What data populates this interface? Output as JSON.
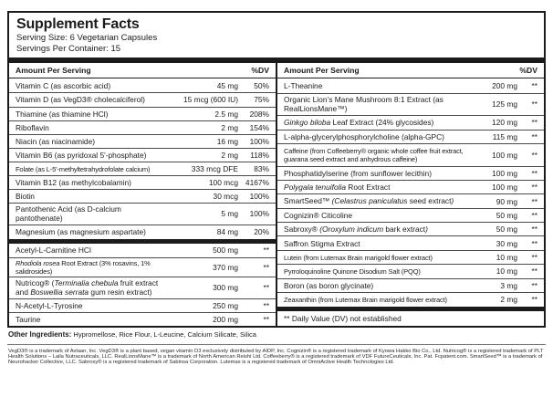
{
  "colors": {
    "text": "#1b1b1b",
    "background": "#ffffff"
  },
  "header": {
    "title": "Supplement Facts",
    "serving_size": "Serving Size: 6 Vegetarian Capsules",
    "servings_per_container": "Servings Per Container: 15"
  },
  "columns": {
    "left": {
      "header": {
        "amount": "Amount Per Serving",
        "dv": "%DV"
      },
      "sections": [
        {
          "rows": [
            {
              "name_parts": [
                {
                  "t": "Vitamin C (as ascorbic acid)"
                }
              ],
              "amount": "45 mg",
              "dv": "50%"
            },
            {
              "name_parts": [
                {
                  "t": "Vitamin D (as VegD3® cholecalciferol)"
                }
              ],
              "amount": "15 mcg (600 IU)",
              "dv": "75%"
            },
            {
              "name_parts": [
                {
                  "t": "Thiamine (as thiamine HCl)"
                }
              ],
              "amount": "2.5 mg",
              "dv": "208%"
            },
            {
              "name_parts": [
                {
                  "t": "Riboflavin"
                }
              ],
              "amount": "2 mg",
              "dv": "154%"
            },
            {
              "name_parts": [
                {
                  "t": "Niacin (as niacinamide)"
                }
              ],
              "amount": "16 mg",
              "dv": "100%"
            },
            {
              "name_parts": [
                {
                  "t": "Vitamin B6 (as pyridoxal 5'-phosphate)"
                }
              ],
              "amount": "2 mg",
              "dv": "118%"
            },
            {
              "name_parts": [
                {
                  "t": "Folate (as L-5'-methyltetrahydrofolate calcium)"
                }
              ],
              "amount": "333 mcg DFE",
              "dv": "83%",
              "small": true
            },
            {
              "name_parts": [
                {
                  "t": "Vitamin B12 (as methylcobalamin)"
                }
              ],
              "amount": "100 mcg",
              "dv": "4167%"
            },
            {
              "name_parts": [
                {
                  "t": "Biotin"
                }
              ],
              "amount": "30 mcg",
              "dv": "100%"
            },
            {
              "name_parts": [
                {
                  "t": "Pantothenic Acid (as D-calcium pantothenate)"
                }
              ],
              "amount": "5 mg",
              "dv": "100%"
            },
            {
              "name_parts": [
                {
                  "t": "Magnesium (as magnesium aspartate)"
                }
              ],
              "amount": "84 mg",
              "dv": "20%"
            }
          ]
        },
        {
          "rows": [
            {
              "name_parts": [
                {
                  "t": "Acetyl-L-Carnitine HCl"
                }
              ],
              "amount": "500 mg",
              "dv": "**"
            },
            {
              "name_parts": [
                {
                  "t": "Rhodiola rosea",
                  "i": true
                },
                {
                  "t": " Root Extract (3% rosavins, 1% salidrosides)"
                }
              ],
              "amount": "370 mg",
              "dv": "**",
              "small": true
            },
            {
              "name_parts": [
                {
                  "t": "Nutricog® ("
                },
                {
                  "t": "Terminalia chebula",
                  "i": true
                },
                {
                  "t": " fruit extract and "
                },
                {
                  "t": "Boswellia serrata",
                  "i": true
                },
                {
                  "t": " gum resin extract)"
                }
              ],
              "amount": "300 mg",
              "dv": "**",
              "double": true
            },
            {
              "name_parts": [
                {
                  "t": "N-Acetyl-L-Tyrosine"
                }
              ],
              "amount": "250 mg",
              "dv": "**"
            },
            {
              "name_parts": [
                {
                  "t": "Taurine"
                }
              ],
              "amount": "200 mg",
              "dv": "**"
            }
          ]
        }
      ]
    },
    "right": {
      "header": {
        "amount": "Amount Per Serving",
        "dv": "%DV"
      },
      "sections": [
        {
          "rows": [
            {
              "name_parts": [
                {
                  "t": "L-Theanine"
                }
              ],
              "amount": "200 mg",
              "dv": "**"
            },
            {
              "name_parts": [
                {
                  "t": "Organic Lion’s Mane Mushroom 8:1 Extract (as RealLionsMane™)"
                }
              ],
              "amount": "125 mg",
              "dv": "**",
              "double": true
            },
            {
              "name_parts": [
                {
                  "t": "Ginkgo biloba",
                  "i": true
                },
                {
                  "t": " Leaf Extract (24% glycosides)"
                }
              ],
              "amount": "120 mg",
              "dv": "**"
            },
            {
              "name_parts": [
                {
                  "t": "L-alpha-glycerylphosphorylcholine (alpha-GPC)"
                }
              ],
              "amount": "115 mg",
              "dv": "**"
            },
            {
              "name_parts": [
                {
                  "t": "Caffeine (from Coffeeberry® organic whole coffee fruit extract, guarana seed extract and anhydrous caffeine)"
                }
              ],
              "amount": "100 mg",
              "dv": "**",
              "double": true,
              "small": true
            },
            {
              "name_parts": [
                {
                  "t": "Phosphatidylserine (from sunflower lecithin)"
                }
              ],
              "amount": "100 mg",
              "dv": "**"
            },
            {
              "name_parts": [
                {
                  "t": "Polygala tenuifolia",
                  "i": true
                },
                {
                  "t": " Root Extract"
                }
              ],
              "amount": "100 mg",
              "dv": "**"
            },
            {
              "name_parts": [
                {
                  "t": "SmartSeed™ "
                },
                {
                  "t": "(Celastrus paniculatus",
                  "i": true
                },
                {
                  "t": " seed extract"
                },
                {
                  "t": ")",
                  "i": true
                }
              ],
              "amount": "90 mg",
              "dv": "**"
            },
            {
              "name_parts": [
                {
                  "t": "Cognizin® Citicoline"
                }
              ],
              "amount": "50 mg",
              "dv": "**"
            },
            {
              "name_parts": [
                {
                  "t": "Sabroxy® "
                },
                {
                  "t": "(Oroxylum indicum",
                  "i": true
                },
                {
                  "t": " bark extract"
                },
                {
                  "t": ")",
                  "i": true
                }
              ],
              "amount": "50 mg",
              "dv": "**"
            },
            {
              "name_parts": [
                {
                  "t": "Saffron Stigma Extract"
                }
              ],
              "amount": "30 mg",
              "dv": "**"
            },
            {
              "name_parts": [
                {
                  "t": "Lutein (from Lutemax Brain marigold flower extract)"
                }
              ],
              "amount": "10 mg",
              "dv": "**",
              "small": true
            },
            {
              "name_parts": [
                {
                  "t": "Pyrroloquinoline Quinone Disodium Salt (PQQ)"
                }
              ],
              "amount": "10 mg",
              "dv": "**",
              "small": true
            },
            {
              "name_parts": [
                {
                  "t": "Boron (as boron glycinate)"
                }
              ],
              "amount": "3 mg",
              "dv": "**"
            },
            {
              "name_parts": [
                {
                  "t": "Zeaxanthin (from Lutemax Brain marigold flower extract)"
                }
              ],
              "amount": "2 mg",
              "dv": "**",
              "small": true
            }
          ]
        }
      ],
      "footnote": "** Daily Value (DV) not established"
    }
  },
  "other_ingredients": {
    "label": "Other Ingredients:",
    "text": " Hypromellose, Rice Flour, L-Leucine, Calcium Silicate, Silica"
  },
  "trademark_note": "VegD3® is a trademark of Avlaan, Inc. VegD3® is a plant based, vegan vitamin D3 exclusively distributed by AIDP, Inc. Cognizin® is a registered trademark of Kyowa Hakko Bio Co., Ltd. Nutricog® is a registered trademark of PLT Health Solutions – Laila Nutraceuticals, LLC. RealLionsMane™ is a trademark of North American Reishi Ltd. Coffeeberry® is a registered trademark of VDF FutureCeuticals, Inc. Pat. Fcpatent.com. SmartSeed™ is a trademark of Neurohacker Collective, LLC. Sabroxy® is a registered trademark of Sabinsa Corporation. Lutemax is a registered trademark of OmniActive Health Technologies Ltd."
}
